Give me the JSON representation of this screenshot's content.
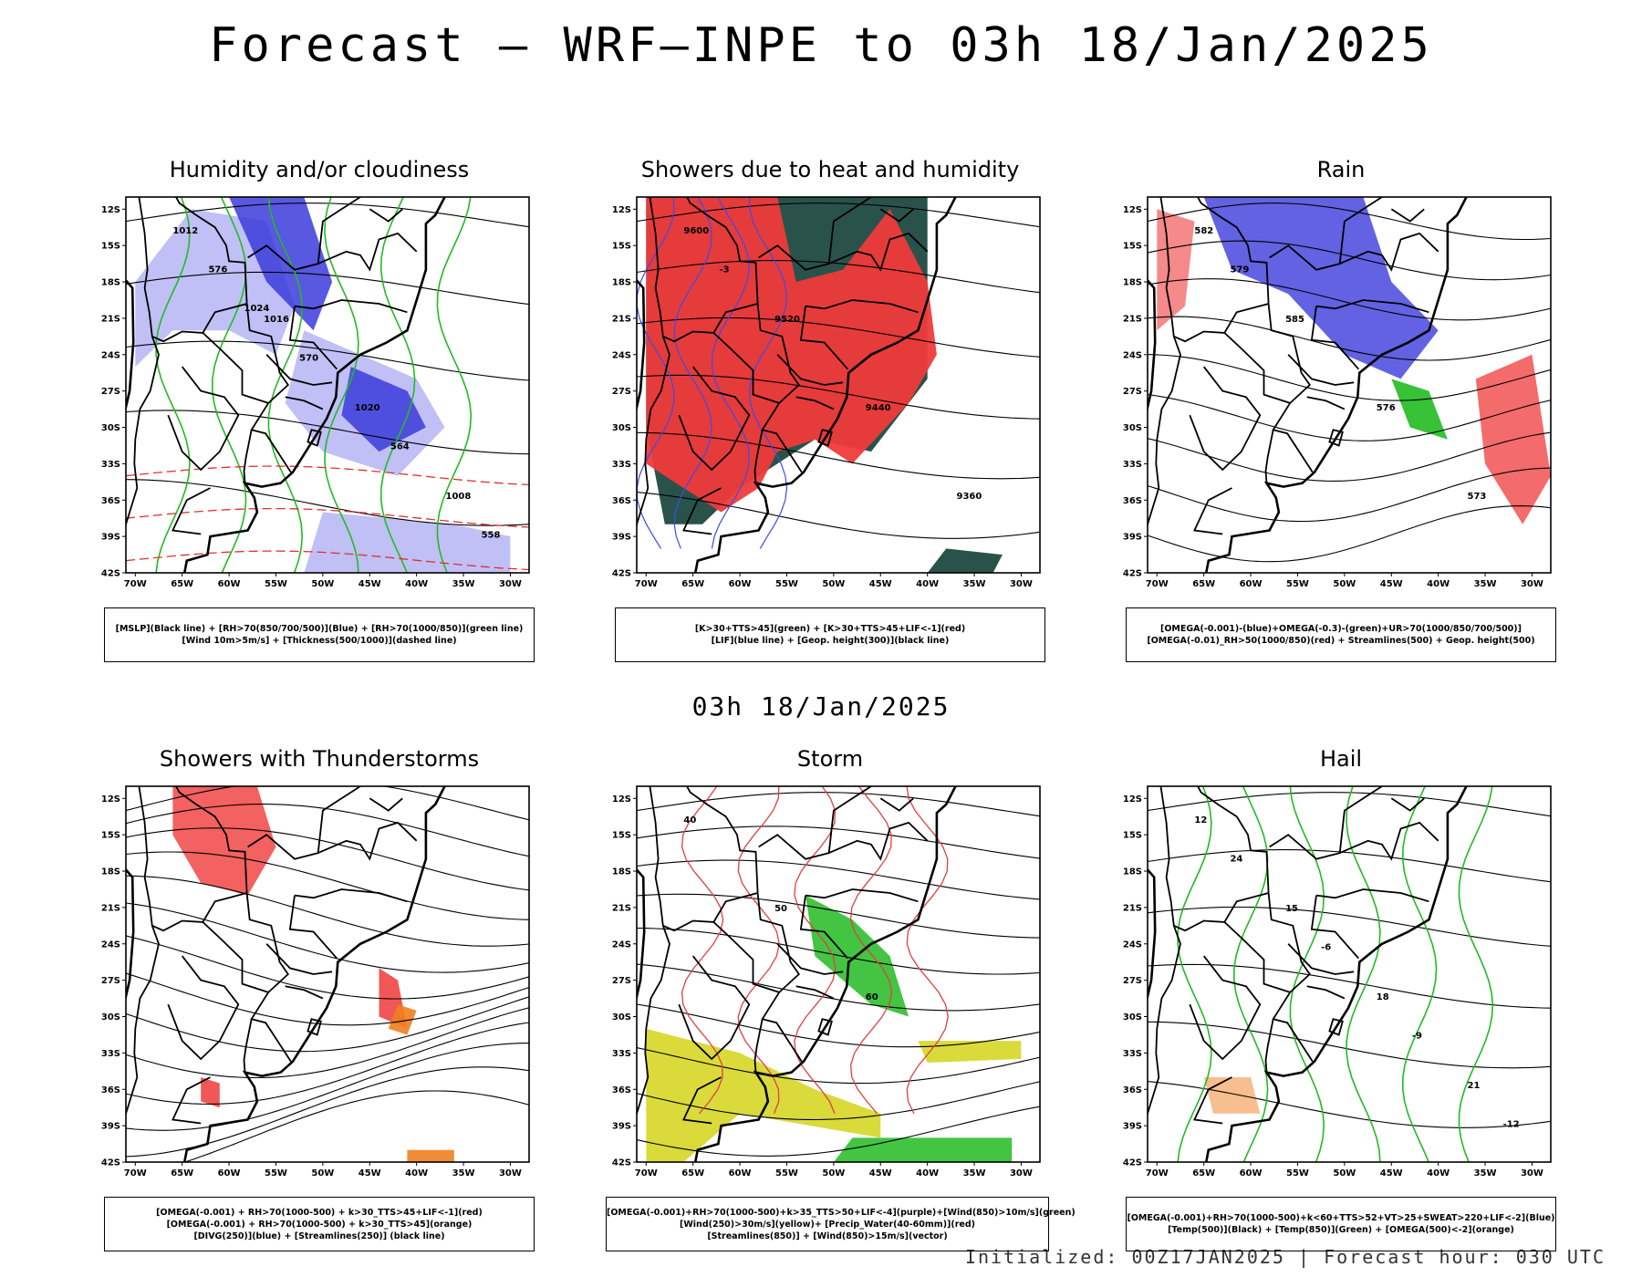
{
  "title": "Forecast – WRF–INPE to 03h 18/Jan/2025",
  "mid_title": "03h 18/Jan/2025",
  "footer": "Initialized: 00Z17JAN2025 | Forecast hour: 030 UTC",
  "axes": {
    "lat_labels": [
      "12S",
      "15S",
      "18S",
      "21S",
      "24S",
      "27S",
      "30S",
      "33S",
      "36S",
      "39S",
      "42S"
    ],
    "lon_labels": [
      "70W",
      "65W",
      "60W",
      "55W",
      "50W",
      "45W",
      "40W",
      "35W",
      "30W"
    ]
  },
  "panels": [
    {
      "title": "Humidity and/or cloudiness",
      "legend": [
        "[MSLP](Black line) + [RH>70(850/700/500)](Blue) + [RH>70(1000/850)](green line)",
        "[Wind 10m>5m/s] + [Thickness(500/1000)](dashed line)"
      ],
      "labels": [
        "1012",
        "1016",
        "1020",
        "1008",
        "576",
        "570",
        "564",
        "558",
        "1024"
      ]
    },
    {
      "title": "Showers due to heat and humidity",
      "legend": [
        "[K>30+TTS>45](green) + [K>30+TTS>45+LIF<-1](red)",
        "[LIF](blue line) + [Geop. height(300)](black line)"
      ],
      "labels": [
        "9600",
        "9520",
        "9440",
        "9360",
        "-3"
      ]
    },
    {
      "title": "Rain",
      "legend": [
        "[OMEGA(-0.001)-(blue)+OMEGA(-0.3)-(green)+UR>70(1000/850/700/500)]",
        "[OMEGA(-0.01)_RH>50(1000/850)(red) + Streamlines(500) + Geop. height(500)"
      ],
      "labels": [
        "582",
        "585",
        "576",
        "573",
        "579"
      ]
    },
    {
      "title": "Showers with Thunderstorms",
      "legend": [
        "[OMEGA(-0.001) + RH>70(1000-500) + k>30_TTS>45+LIF<-1](red)",
        "[OMEGA(-0.001) + RH>70(1000-500) + k>30_TTS>45](orange)",
        "[DIVG(250)](blue) + [Streamlines(250)] (black line)"
      ],
      "labels": []
    },
    {
      "title": "Storm",
      "legend": [
        "[OMEGA(-0.001)+RH>70(1000-500)+k>35_TTS>50+LIF<-4](purple)+[Wind(850)>10m/s](green)",
        "[Wind(250)>30m/s](yellow)+ [Precip_Water(40-60mm)](red)",
        "[Streamlines(850)] + [Wind(850)>15m/s](vector)"
      ],
      "labels": [
        "40",
        "50",
        "60"
      ]
    },
    {
      "title": "Hail",
      "legend": [
        "[OMEGA(-0.001)+RH>70(1000-500)+k<60+TTS>52+VT>25+SWEAT>220+LIF<-2](Blue)",
        "[Temp(500)](Black) + [Temp(850)](Green) + [OMEGA(500)<-2](orange)"
      ],
      "labels": [
        "12",
        "15",
        "18",
        "21",
        "24",
        "-6",
        "-9",
        "-12"
      ]
    }
  ],
  "colors": {
    "blue_fill": "#3b3bdb",
    "light_blue_fill": "#b9b9f5",
    "green_line": "#22bb22",
    "red_fill": "#f03a3a",
    "dark_green_fill": "#1d4a40",
    "orange_fill": "#f08020",
    "yellow_fill": "#d8d830"
  }
}
